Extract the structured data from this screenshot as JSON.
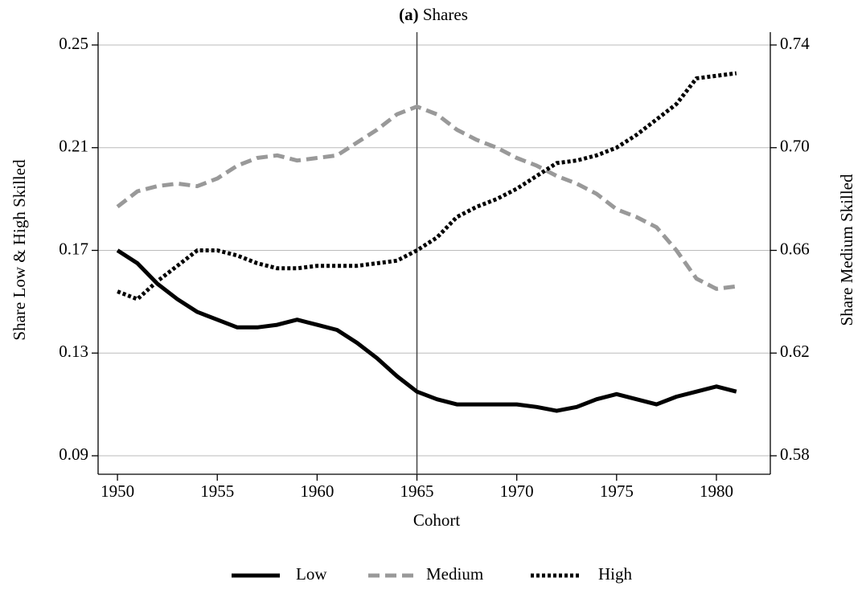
{
  "chart_data": {
    "type": "line",
    "title_label": "(a)",
    "title": "Shares",
    "xlabel": "Cohort",
    "ylabel": "Share Low & High Skilled",
    "y2label": "Share Medium Skilled",
    "x": [
      1950,
      1951,
      1952,
      1953,
      1954,
      1955,
      1956,
      1957,
      1958,
      1959,
      1960,
      1961,
      1962,
      1963,
      1964,
      1965,
      1966,
      1967,
      1968,
      1969,
      1970,
      1971,
      1972,
      1973,
      1974,
      1975,
      1976,
      1977,
      1978,
      1979,
      1980,
      1981
    ],
    "xlim": [
      1949.03,
      1982.7
    ],
    "xticks": [
      1950,
      1955,
      1960,
      1965,
      1970,
      1975,
      1980
    ],
    "ylim": [
      0.0828,
      0.255
    ],
    "yticks": [
      0.09,
      0.13,
      0.17,
      0.21,
      0.25
    ],
    "y2lim": [
      0.5728,
      0.745
    ],
    "y2ticks": [
      0.58,
      0.62,
      0.66,
      {
        "value": 0.7,
        "label": "0.70"
      },
      0.74
    ],
    "grid": true,
    "vline": 1965,
    "legend": "bottom",
    "series": [
      {
        "name": "Low",
        "color": "#000000",
        "style": "solid",
        "values": [
          0.17,
          0.165,
          0.157,
          0.151,
          0.146,
          0.143,
          0.14,
          0.14,
          0.141,
          0.143,
          0.141,
          0.139,
          0.134,
          0.128,
          0.121,
          0.115,
          0.112,
          0.11,
          0.11,
          0.11,
          0.11,
          0.109,
          0.1075,
          0.109,
          0.112,
          0.114,
          0.112,
          0.11,
          0.113,
          0.115,
          0.117,
          0.115
        ]
      },
      {
        "name": "Medium",
        "color": "#999999",
        "style": "dashed",
        "axis": "y2",
        "values": [
          0.677,
          0.683,
          0.685,
          0.686,
          0.685,
          0.688,
          0.693,
          0.696,
          0.697,
          0.695,
          0.696,
          0.697,
          0.702,
          0.707,
          0.713,
          0.716,
          0.713,
          0.707,
          0.703,
          0.7,
          0.696,
          0.693,
          0.689,
          0.686,
          0.682,
          0.676,
          0.673,
          0.669,
          0.66,
          0.649,
          0.645,
          0.646
        ]
      },
      {
        "name": "High",
        "color": "#000000",
        "style": "dotted",
        "values": [
          0.154,
          0.151,
          0.158,
          0.164,
          0.17,
          0.17,
          0.168,
          0.165,
          0.163,
          0.163,
          0.164,
          0.164,
          0.164,
          0.165,
          0.166,
          0.17,
          0.175,
          0.183,
          0.187,
          0.19,
          0.194,
          0.199,
          0.204,
          0.205,
          0.207,
          0.21,
          0.215,
          0.221,
          0.227,
          0.237,
          0.238,
          0.239
        ]
      }
    ]
  }
}
